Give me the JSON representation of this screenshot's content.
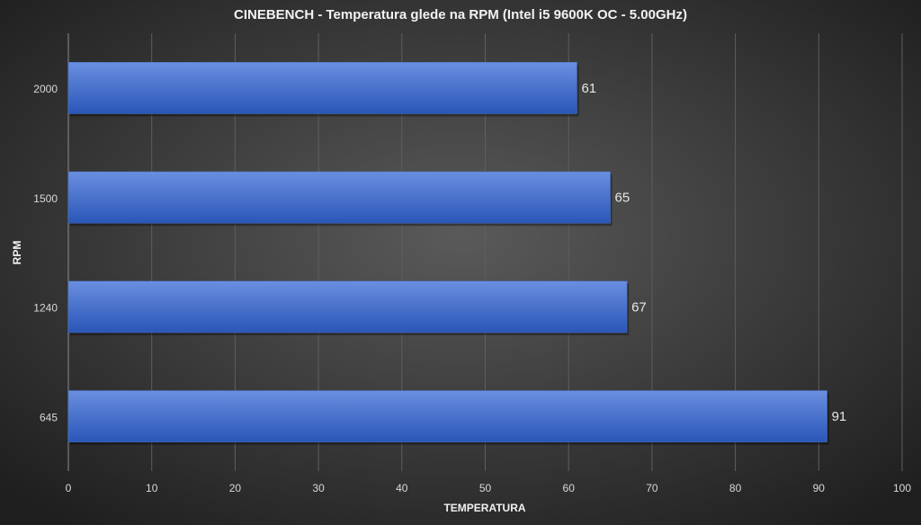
{
  "chart_data": {
    "type": "bar",
    "orientation": "horizontal",
    "title": "CINEBENCH - Temperatura  glede na RPM (Intel i5 9600K OC - 5.00GHz)",
    "x_label": "TEMPERATURA",
    "y_label": "RPM",
    "categories": [
      "2000",
      "1500",
      "1240",
      "645"
    ],
    "values": [
      61,
      65,
      67,
      91
    ],
    "color": "#4472c4",
    "xlim": [
      0,
      100
    ],
    "xticks": [
      0,
      10,
      20,
      30,
      40,
      50,
      60,
      70,
      80,
      90,
      100
    ],
    "grid": true,
    "data_labels": true
  }
}
